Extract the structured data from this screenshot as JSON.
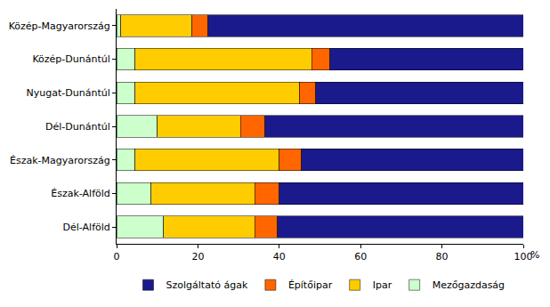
{
  "chart_data": {
    "type": "bar",
    "orientation": "horizontal",
    "stacked": true,
    "x_label": "%",
    "categories": [
      "Közép-Magyarország",
      "Közép-Dunántúl",
      "Nyugat-Dunántúl",
      "Dél-Dunántúl",
      "Észak-Magyarország",
      "Észak-Alföld",
      "Dél-Alföld"
    ],
    "series": [
      {
        "name": "Mezőgazdaság",
        "color": "#ccffcc",
        "values": [
          1,
          4.5,
          4.5,
          10,
          4.5,
          8.5,
          11.5
        ]
      },
      {
        "name": "Ipar",
        "color": "#ffcc00",
        "values": [
          17.5,
          43.5,
          40.5,
          20.5,
          35.5,
          25.5,
          22.5
        ]
      },
      {
        "name": "Építőipar",
        "color": "#ff6600",
        "values": [
          4,
          4.5,
          4,
          6,
          5.5,
          6,
          5.5
        ]
      },
      {
        "name": "Szolgáltató ágak",
        "color": "#1a1a8c",
        "values": [
          77.5,
          47.5,
          51,
          63.5,
          54.5,
          60,
          60.5
        ]
      }
    ],
    "xlim": [
      0,
      100
    ],
    "xticks": [
      0,
      20,
      40,
      60,
      80,
      100
    ],
    "grid": false,
    "legend": "bottom"
  }
}
